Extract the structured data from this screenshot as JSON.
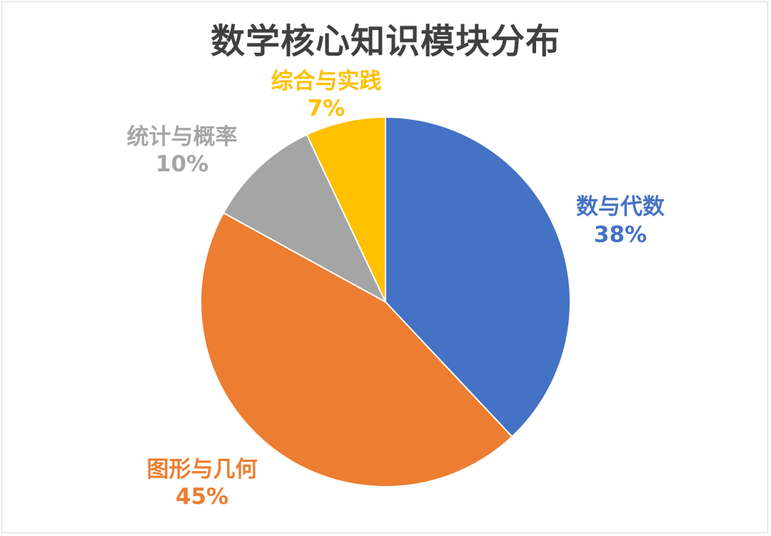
{
  "chart_data": {
    "type": "pie",
    "title": "数学核心知识模块分布",
    "categories": [
      "数与代数",
      "图形与几何",
      "统计与概率",
      "综合与实践"
    ],
    "values": [
      38,
      45,
      10,
      7
    ],
    "labels": [
      "38%",
      "45%",
      "10%",
      "7%"
    ],
    "colors": [
      "#4472C4",
      "#ED7D31",
      "#A5A5A5",
      "#FFC000"
    ],
    "start_angle_deg": 0,
    "direction": "clockwise",
    "legend": "none",
    "data_labels": "category-and-percent outside"
  }
}
